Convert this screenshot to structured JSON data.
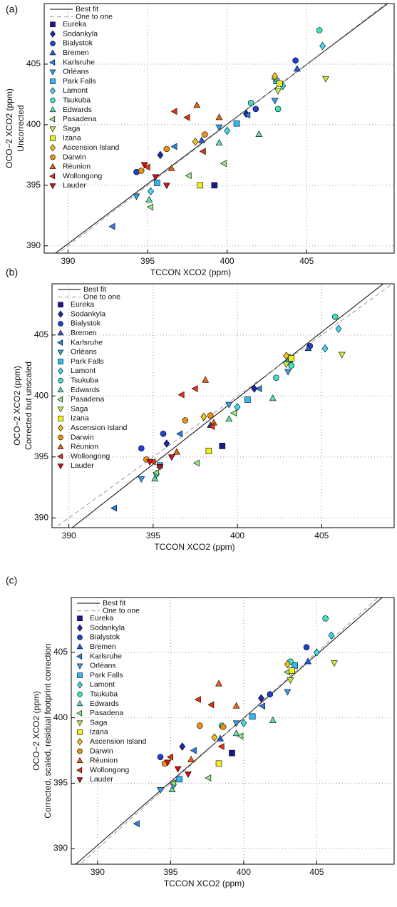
{
  "chart_data": [
    {
      "type": "scatter",
      "label": "(a)",
      "xlabel": "TCCON XCO2 (ppm)",
      "ylabel": "OCO−2 XCO2 (ppm)",
      "ylabel2": "Uncorrected",
      "xlim": [
        388.5,
        410.5
      ],
      "ylim": [
        389.4,
        410
      ],
      "xticks": [
        390,
        395,
        400,
        405
      ],
      "yticks": [
        390,
        395,
        400,
        405
      ],
      "grid": true,
      "legend": "upper left",
      "lines": [
        {
          "name": "Best fit",
          "style": "solid",
          "x": [
            388.5,
            410.5
          ],
          "y": [
            388.7,
            410.4
          ]
        },
        {
          "name": "One to one",
          "style": "dashed",
          "x": [
            388.5,
            410.5
          ],
          "y": [
            388.5,
            410.5
          ]
        }
      ],
      "series": [
        {
          "name": "Eureka",
          "color": "#1a1a8c",
          "marker": "square",
          "x": [
            399.2
          ],
          "y": [
            395.0
          ]
        },
        {
          "name": "Sodankyla",
          "color": "#1a2aa8",
          "marker": "diamond",
          "x": [
            395.8,
            401.2
          ],
          "y": [
            397.5,
            400.9
          ]
        },
        {
          "name": "Bialystok",
          "color": "#1f3fd0",
          "marker": "circle",
          "x": [
            394.3,
            401.8,
            404.3
          ],
          "y": [
            396.1,
            401.3,
            405.3
          ]
        },
        {
          "name": "Bremen",
          "color": "#2060e0",
          "marker": "triangle-up",
          "x": [
            398.4,
            404.4
          ],
          "y": [
            398.7,
            404.6
          ]
        },
        {
          "name": "Karlsruhe",
          "color": "#2a80e8",
          "marker": "triangle-left",
          "x": [
            392.8,
            396.7,
            401.3
          ],
          "y": [
            391.6,
            398.2,
            400.8
          ]
        },
        {
          "name": "Orléans",
          "color": "#30a0f0",
          "marker": "triangle-down",
          "x": [
            394.3,
            399.5,
            403.0
          ],
          "y": [
            394.1,
            399.8,
            402.0
          ]
        },
        {
          "name": "Park Falls",
          "color": "#30b8f0",
          "marker": "square",
          "x": [
            395.6,
            400.6,
            403.1
          ],
          "y": [
            395.2,
            400.1,
            403.6
          ]
        },
        {
          "name": "Lamont",
          "color": "#40d8f0",
          "marker": "diamond",
          "x": [
            395.2,
            400.0,
            406.0,
            403.5
          ],
          "y": [
            394.5,
            399.5,
            406.5,
            403.2
          ]
        },
        {
          "name": "Tsukuba",
          "color": "#40e0c0",
          "marker": "circle",
          "x": [
            405.8,
            403.2,
            401.5
          ],
          "y": [
            407.8,
            401.3,
            401.8
          ]
        },
        {
          "name": "Edwards",
          "color": "#60e0a0",
          "marker": "triangle-up",
          "x": [
            395.1,
            402.0,
            399.5
          ],
          "y": [
            393.8,
            399.2,
            398.5
          ]
        },
        {
          "name": "Pasadena",
          "color": "#90e880",
          "marker": "triangle-left",
          "x": [
            395.2,
            397.6,
            399.8,
            403.0
          ],
          "y": [
            393.2,
            395.8,
            396.8,
            403.8
          ]
        },
        {
          "name": "Saga",
          "color": "#c0f040",
          "marker": "triangle-down",
          "x": [
            406.2,
            403.2
          ],
          "y": [
            403.8,
            402.8
          ]
        },
        {
          "name": "Izana",
          "color": "#f0f020",
          "marker": "square",
          "x": [
            398.3,
            403.3
          ],
          "y": [
            395.0,
            403.4
          ]
        },
        {
          "name": "Ascension Island",
          "color": "#f0c020",
          "marker": "diamond",
          "x": [
            398.0,
            403.0
          ],
          "y": [
            398.6,
            404.0
          ]
        },
        {
          "name": "Darwin",
          "color": "#f09010",
          "marker": "circle",
          "x": [
            396.2,
            398.6,
            394.6
          ],
          "y": [
            398.0,
            399.2,
            396.2
          ]
        },
        {
          "name": "Réunion",
          "color": "#f06010",
          "marker": "triangle-up",
          "x": [
            398.1,
            396.5,
            399.5
          ],
          "y": [
            401.6,
            396.4,
            400.6
          ]
        },
        {
          "name": "Wollongong",
          "color": "#e83010",
          "marker": "triangle-left",
          "x": [
            396.7,
            397.5,
            395.0,
            398.5
          ],
          "y": [
            401.1,
            400.6,
            396.5,
            397.8
          ]
        },
        {
          "name": "Lauder",
          "color": "#d01010",
          "marker": "triangle-down",
          "x": [
            394.8,
            395.5,
            396.2
          ],
          "y": [
            396.7,
            395.7,
            395.0
          ]
        }
      ]
    },
    {
      "type": "scatter",
      "label": "(b)",
      "xlabel": "TCCON XCO2 (ppm)",
      "ylabel": "OCO−2 XCO2 (ppm)",
      "ylabel2": "Corrected but unscaled",
      "xlim": [
        389,
        409.3
      ],
      "ylim": [
        389.2,
        409.2
      ],
      "xticks": [
        390,
        395,
        400,
        405
      ],
      "yticks": [
        390,
        395,
        400,
        405
      ],
      "grid": true,
      "legend": "upper left",
      "lines": [
        {
          "name": "Best fit",
          "style": "solid",
          "x": [
            389,
            409.3
          ],
          "y": [
            387.9,
            409.9
          ]
        },
        {
          "name": "One to one",
          "style": "dashed",
          "x": [
            389,
            409.3
          ],
          "y": [
            389,
            409.3
          ]
        }
      ],
      "series": [
        {
          "name": "Eureka",
          "color": "#1a1a8c",
          "marker": "square",
          "x": [
            399.1
          ],
          "y": [
            395.9
          ]
        },
        {
          "name": "Sodankyla",
          "color": "#1a2aa8",
          "marker": "diamond",
          "x": [
            395.8,
            401.0
          ],
          "y": [
            396.1,
            400.6
          ]
        },
        {
          "name": "Bialystok",
          "color": "#1f3fd0",
          "marker": "circle",
          "x": [
            394.3,
            395.6,
            404.3
          ],
          "y": [
            395.7,
            396.9,
            404.1
          ]
        },
        {
          "name": "Bremen",
          "color": "#2060e0",
          "marker": "triangle-up",
          "x": [
            398.4,
            404.2
          ],
          "y": [
            397.6,
            403.9
          ]
        },
        {
          "name": "Karlsruhe",
          "color": "#2a80e8",
          "marker": "triangle-left",
          "x": [
            392.7,
            396.6,
            401.3
          ],
          "y": [
            390.8,
            396.9,
            400.6
          ]
        },
        {
          "name": "Orléans",
          "color": "#30a0f0",
          "marker": "triangle-down",
          "x": [
            394.3,
            399.5,
            403.0
          ],
          "y": [
            393.2,
            399.3,
            402.0
          ]
        },
        {
          "name": "Park Falls",
          "color": "#30b8f0",
          "marker": "square",
          "x": [
            395.4,
            400.6,
            403.1
          ],
          "y": [
            394.3,
            399.7,
            403.0
          ]
        },
        {
          "name": "Lamont",
          "color": "#40d8f0",
          "marker": "diamond",
          "x": [
            395.2,
            400.0,
            406.0,
            405.2
          ],
          "y": [
            393.6,
            399.1,
            405.5,
            403.9
          ]
        },
        {
          "name": "Tsukuba",
          "color": "#40e0c0",
          "marker": "circle",
          "x": [
            405.8,
            403.2,
            402.3
          ],
          "y": [
            406.5,
            402.5,
            401.5
          ]
        },
        {
          "name": "Edwards",
          "color": "#60e0a0",
          "marker": "triangle-up",
          "x": [
            395.1,
            402.1,
            399.5
          ],
          "y": [
            393.2,
            399.8,
            398.1
          ]
        },
        {
          "name": "Pasadena",
          "color": "#90e880",
          "marker": "triangle-left",
          "x": [
            395.2,
            397.6,
            399.8,
            403.0
          ],
          "y": [
            393.7,
            394.5,
            398.6,
            403.2
          ]
        },
        {
          "name": "Saga",
          "color": "#c0f040",
          "marker": "triangle-down",
          "x": [
            406.2,
            402.9
          ],
          "y": [
            403.4,
            402.6
          ]
        },
        {
          "name": "Izana",
          "color": "#f0f020",
          "marker": "square",
          "x": [
            398.3,
            403.2
          ],
          "y": [
            395.5,
            403.1
          ]
        },
        {
          "name": "Ascension Island",
          "color": "#f0c020",
          "marker": "diamond",
          "x": [
            398.0,
            402.9
          ],
          "y": [
            398.3,
            403.3
          ]
        },
        {
          "name": "Darwin",
          "color": "#f09010",
          "marker": "circle",
          "x": [
            396.9,
            398.4,
            394.6
          ],
          "y": [
            398.0,
            398.4,
            394.8
          ]
        },
        {
          "name": "Réunion",
          "color": "#f06010",
          "marker": "triangle-up",
          "x": [
            398.1,
            396.4,
            398.6
          ],
          "y": [
            401.3,
            395.4,
            397.8
          ]
        },
        {
          "name": "Wollongong",
          "color": "#e83010",
          "marker": "triangle-left",
          "x": [
            396.7,
            397.5,
            395.0,
            398.5
          ],
          "y": [
            400.1,
            400.6,
            394.6,
            397.5
          ]
        },
        {
          "name": "Lauder",
          "color": "#d01010",
          "marker": "triangle-down",
          "x": [
            394.8,
            395.4,
            396.1
          ],
          "y": [
            394.6,
            394.2,
            395.0
          ]
        }
      ]
    },
    {
      "type": "scatter",
      "label": "(c)",
      "xlabel": "TCCON XCO2 (ppm)",
      "ylabel": "OCO−2 XCO2 (ppm)",
      "ylabel2": "Corrected, scaled, residual footprint correction",
      "xlim": [
        388.2,
        410.3
      ],
      "ylim": [
        388.8,
        409.2
      ],
      "xticks": [
        390,
        395,
        400,
        405
      ],
      "yticks": [
        390,
        395,
        400,
        405
      ],
      "grid": true,
      "legend": "upper left",
      "lines": [
        {
          "name": "Best fit",
          "style": "solid",
          "x": [
            388.2,
            410.3
          ],
          "y": [
            388.5,
            410.0
          ]
        },
        {
          "name": "One to one",
          "style": "dashed",
          "x": [
            388.2,
            410.3
          ],
          "y": [
            388.2,
            410.3
          ]
        }
      ],
      "series": [
        {
          "name": "Eureka",
          "color": "#1a1a8c",
          "marker": "square",
          "x": [
            399.2
          ],
          "y": [
            397.3
          ]
        },
        {
          "name": "Sodankyla",
          "color": "#1a2aa8",
          "marker": "diamond",
          "x": [
            395.8,
            401.2
          ],
          "y": [
            397.8,
            401.5
          ]
        },
        {
          "name": "Bialystok",
          "color": "#1f3fd0",
          "marker": "circle",
          "x": [
            394.3,
            401.8,
            404.3
          ],
          "y": [
            397.0,
            401.8,
            405.4
          ]
        },
        {
          "name": "Bremen",
          "color": "#2060e0",
          "marker": "triangle-up",
          "x": [
            398.4,
            404.4
          ],
          "y": [
            398.4,
            404.3
          ]
        },
        {
          "name": "Karlsruhe",
          "color": "#2a80e8",
          "marker": "triangle-left",
          "x": [
            392.7,
            396.6,
            401.3
          ],
          "y": [
            391.9,
            397.5,
            400.9
          ]
        },
        {
          "name": "Orléans",
          "color": "#30a0f0",
          "marker": "triangle-down",
          "x": [
            394.3,
            399.5,
            403.0
          ],
          "y": [
            394.5,
            399.6,
            402.0
          ]
        },
        {
          "name": "Park Falls",
          "color": "#30b8f0",
          "marker": "square",
          "x": [
            395.6,
            400.6,
            403.5
          ],
          "y": [
            395.3,
            400.1,
            404.0
          ]
        },
        {
          "name": "Lamont",
          "color": "#40d8f0",
          "marker": "diamond",
          "x": [
            395.2,
            400.0,
            406.0,
            405.0
          ],
          "y": [
            394.9,
            399.6,
            406.3,
            405.0
          ]
        },
        {
          "name": "Tsukuba",
          "color": "#40e0c0",
          "marker": "circle",
          "x": [
            405.6,
            403.2,
            398.5
          ],
          "y": [
            407.6,
            404.3,
            399.4
          ]
        },
        {
          "name": "Edwards",
          "color": "#60e0a0",
          "marker": "triangle-up",
          "x": [
            395.1,
            402.0,
            399.5
          ],
          "y": [
            394.5,
            399.8,
            398.8
          ]
        },
        {
          "name": "Pasadena",
          "color": "#90e880",
          "marker": "triangle-left",
          "x": [
            395.2,
            397.6,
            399.8,
            403.0
          ],
          "y": [
            395.0,
            395.4,
            398.6,
            403.5
          ]
        },
        {
          "name": "Saga",
          "color": "#c0f040",
          "marker": "triangle-down",
          "x": [
            406.2,
            403.2
          ],
          "y": [
            404.2,
            402.9
          ]
        },
        {
          "name": "Izana",
          "color": "#f0f020",
          "marker": "square",
          "x": [
            398.3,
            403.3
          ],
          "y": [
            396.5,
            403.6
          ]
        },
        {
          "name": "Ascension Island",
          "color": "#f0c020",
          "marker": "diamond",
          "x": [
            398.0,
            403.0
          ],
          "y": [
            398.5,
            404.1
          ]
        },
        {
          "name": "Darwin",
          "color": "#f09010",
          "marker": "circle",
          "x": [
            397.0,
            398.6,
            394.6
          ],
          "y": [
            399.4,
            399.3,
            396.5
          ]
        },
        {
          "name": "Réunion",
          "color": "#f06010",
          "marker": "triangle-up",
          "x": [
            398.3,
            396.4,
            399.5
          ],
          "y": [
            402.6,
            396.8,
            400.9
          ]
        },
        {
          "name": "Wollongong",
          "color": "#e83010",
          "marker": "triangle-left",
          "x": [
            396.9,
            397.8,
            395.0,
            398.5
          ],
          "y": [
            401.4,
            401.0,
            397.0,
            397.8
          ]
        },
        {
          "name": "Lauder",
          "color": "#d01010",
          "marker": "triangle-down",
          "x": [
            394.8,
            395.5,
            396.2
          ],
          "y": [
            396.6,
            396.1,
            395.7
          ]
        }
      ]
    }
  ]
}
